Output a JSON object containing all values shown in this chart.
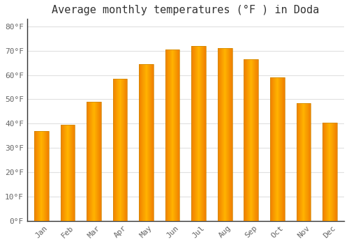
{
  "title": "Average monthly temperatures (°F ) in Doda",
  "months": [
    "Jan",
    "Feb",
    "Mar",
    "Apr",
    "May",
    "Jun",
    "Jul",
    "Aug",
    "Sep",
    "Oct",
    "Nov",
    "Dec"
  ],
  "values": [
    37,
    39.5,
    49,
    58.5,
    64.5,
    70.5,
    72,
    71,
    66.5,
    59,
    48.5,
    40.5
  ],
  "bar_color_center": "#FFB300",
  "bar_color_edge": "#F08000",
  "bar_outline_color": "#CC8800",
  "ylim": [
    0,
    83
  ],
  "yticks": [
    0,
    10,
    20,
    30,
    40,
    50,
    60,
    70,
    80
  ],
  "ytick_labels": [
    "0°F",
    "10°F",
    "20°F",
    "30°F",
    "40°F",
    "50°F",
    "60°F",
    "70°F",
    "80°F"
  ],
  "background_color": "#FFFFFF",
  "grid_color": "#E0E0E0",
  "title_fontsize": 11,
  "tick_fontsize": 8,
  "font_family": "monospace",
  "bar_width": 0.55,
  "left_spine_color": "#333333"
}
